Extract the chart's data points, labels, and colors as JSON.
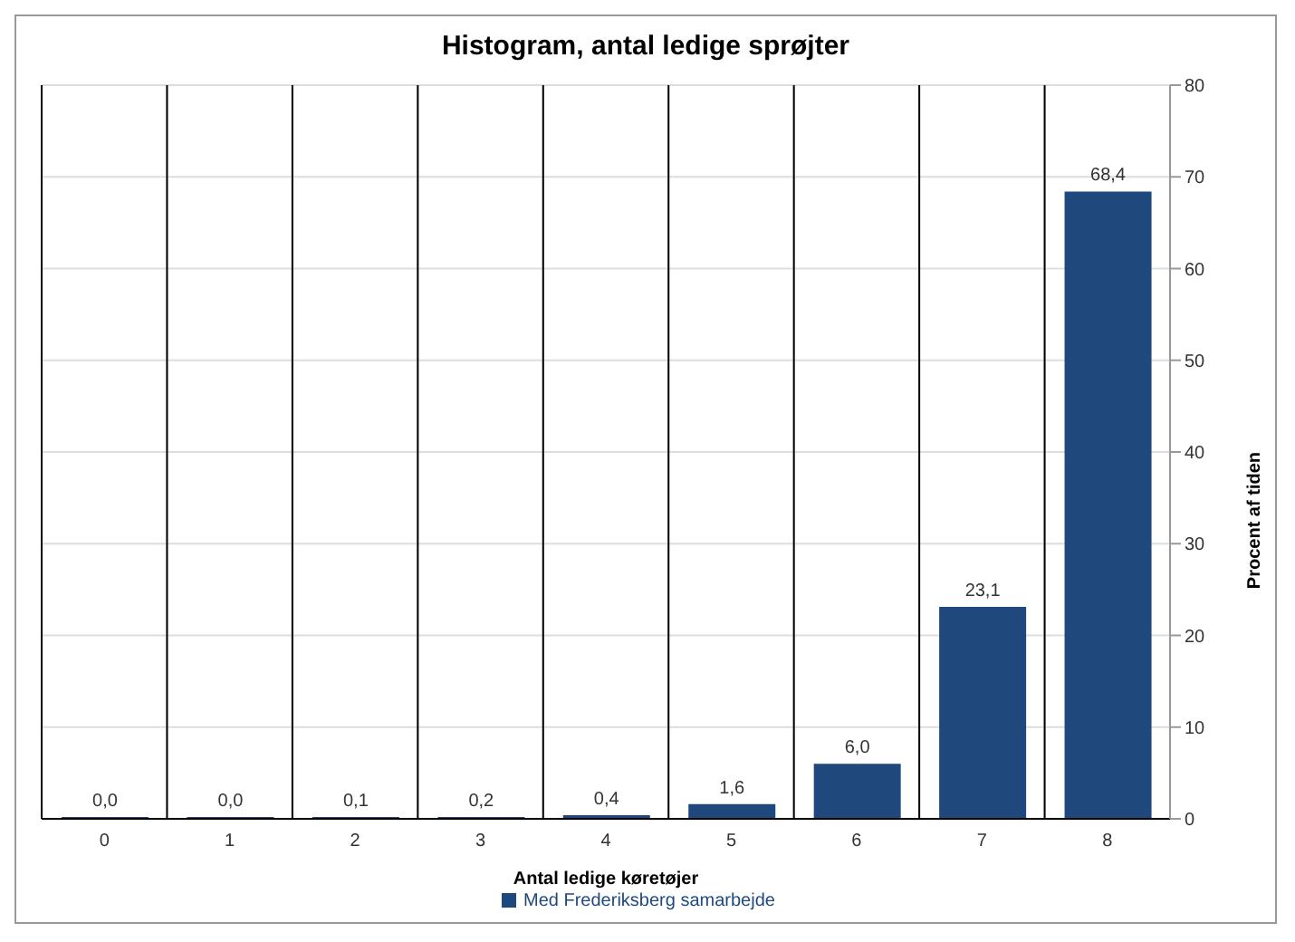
{
  "chart_data": {
    "type": "bar",
    "title": "Histogram, antal ledige sprøjter",
    "xlabel": "Antal ledige køretøjer",
    "ylabel": "Procent af tiden",
    "categories": [
      "0",
      "1",
      "2",
      "3",
      "4",
      "5",
      "6",
      "7",
      "8"
    ],
    "series": [
      {
        "name": "Med Frederiksberg samarbejde",
        "color": "#1f497d",
        "values": [
          0.0,
          0.0,
          0.1,
          0.2,
          0.4,
          1.6,
          6.0,
          23.1,
          68.4
        ],
        "value_labels": [
          "0,0",
          "0,0",
          "0,1",
          "0,2",
          "0,4",
          "1,6",
          "6,0",
          "23,1",
          "68,4"
        ]
      }
    ],
    "ylim": [
      0,
      80
    ],
    "yticks": [
      0,
      10,
      20,
      30,
      40,
      50,
      60,
      70,
      80
    ],
    "grid": true,
    "legend": "bottom"
  }
}
